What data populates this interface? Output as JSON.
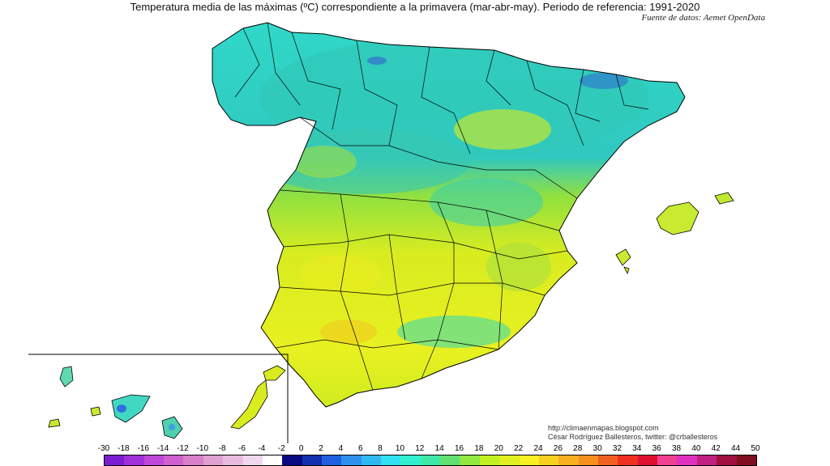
{
  "header": {
    "title": "Temperatura media de las máximas (ºC) correspondiente a la primavera (mar-abr-may). Periodo de referencia: 1991-2020",
    "source": "Fuente de datos: Aemet OpenData"
  },
  "credits": {
    "blog": "http://climaenmapas.blogspot.com",
    "author": "César Rodríguez Ballesteros, twitter: @crballesteros"
  },
  "legend": {
    "labels": [
      "-30",
      "-18",
      "-16",
      "-14",
      "-12",
      "-10",
      "-8",
      "-6",
      "-4",
      "-2",
      "0",
      "2",
      "4",
      "6",
      "8",
      "10",
      "12",
      "14",
      "16",
      "18",
      "20",
      "22",
      "24",
      "26",
      "28",
      "30",
      "32",
      "34",
      "36",
      "38",
      "40",
      "42",
      "44",
      "50"
    ],
    "colors": [
      "#7a1fd0",
      "#a030d8",
      "#c048d8",
      "#d060d0",
      "#d880c8",
      "#e0a0d0",
      "#e8bce0",
      "#f0d8ec",
      "#ffffff",
      "#0a0a80",
      "#1030b0",
      "#2060e0",
      "#3090f0",
      "#30b8f0",
      "#30e0f0",
      "#30f0d0",
      "#40e8a8",
      "#60e070",
      "#90e840",
      "#c0f020",
      "#e0f020",
      "#f8f020",
      "#f8d020",
      "#f8b020",
      "#f89020",
      "#f06020",
      "#f03020",
      "#e01030",
      "#f04090",
      "#e030c0",
      "#c02080",
      "#a01040",
      "#801020"
    ]
  },
  "map": {
    "region": "Spain",
    "variable": "spring mean maximum temperature",
    "unit": "ºC",
    "inset": "Canary Islands"
  }
}
